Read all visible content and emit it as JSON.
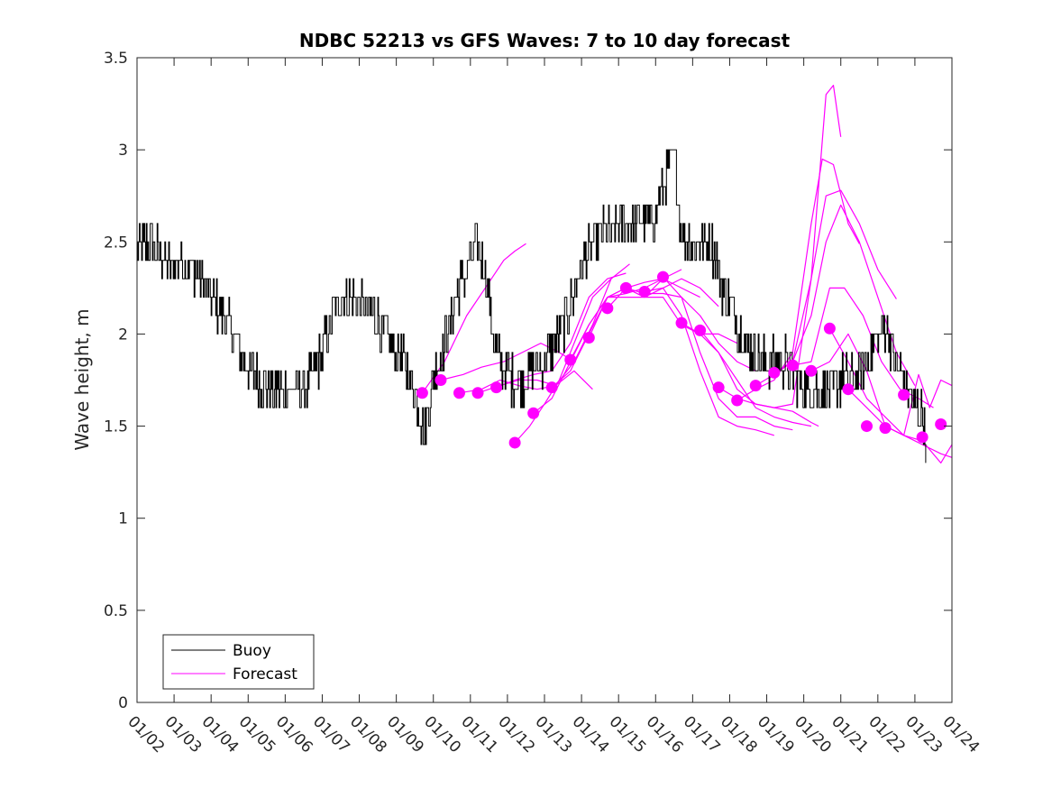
{
  "chart_data": {
    "type": "line",
    "title": "NDBC 52213 vs GFS Waves: 7 to 10 day forecast",
    "xlabel": "",
    "ylabel": "Wave height, m",
    "xlim": [
      0,
      22
    ],
    "ylim": [
      0,
      3.5
    ],
    "x_tick_values": [
      0,
      1,
      2,
      3,
      4,
      5,
      6,
      7,
      8,
      9,
      10,
      11,
      12,
      13,
      14,
      15,
      16,
      17,
      18,
      19,
      20,
      21,
      22
    ],
    "x_tick_labels": [
      "01/02",
      "01/03",
      "01/04",
      "01/05",
      "01/06",
      "01/07",
      "01/08",
      "01/09",
      "01/10",
      "01/11",
      "01/12",
      "01/13",
      "01/14",
      "01/15",
      "01/16",
      "01/17",
      "01/18",
      "01/19",
      "01/20",
      "01/21",
      "01/22",
      "01/23",
      "01/24"
    ],
    "y_tick_values": [
      0,
      0.5,
      1,
      1.5,
      2,
      2.5,
      3,
      3.5
    ],
    "y_tick_labels": [
      "0",
      "0.5",
      "1",
      "1.5",
      "2",
      "2.5",
      "3",
      "3.5"
    ],
    "legend": {
      "location": "bottom-left",
      "entries": [
        {
          "label": "Buoy",
          "color": "#000000"
        },
        {
          "label": "Forecast",
          "color": "#ff00ff"
        }
      ]
    },
    "colors": {
      "buoy": "#000000",
      "forecast": "#ff00ff"
    },
    "buoy_anchors": [
      [
        0.0,
        2.45
      ],
      [
        0.3,
        2.5
      ],
      [
        0.6,
        2.45
      ],
      [
        0.9,
        2.35
      ],
      [
        1.2,
        2.4
      ],
      [
        1.5,
        2.35
      ],
      [
        1.8,
        2.3
      ],
      [
        2.0,
        2.2
      ],
      [
        2.3,
        2.1
      ],
      [
        2.6,
        2.0
      ],
      [
        2.8,
        1.9
      ],
      [
        3.0,
        1.8
      ],
      [
        3.3,
        1.75
      ],
      [
        3.6,
        1.7
      ],
      [
        3.9,
        1.7
      ],
      [
        4.2,
        1.7
      ],
      [
        4.5,
        1.7
      ],
      [
        4.8,
        1.8
      ],
      [
        5.0,
        1.9
      ],
      [
        5.2,
        2.05
      ],
      [
        5.5,
        2.2
      ],
      [
        5.8,
        2.2
      ],
      [
        6.1,
        2.15
      ],
      [
        6.4,
        2.1
      ],
      [
        6.7,
        2.0
      ],
      [
        7.0,
        1.9
      ],
      [
        7.3,
        1.8
      ],
      [
        7.6,
        1.6
      ],
      [
        7.75,
        1.45
      ],
      [
        8.0,
        1.75
      ],
      [
        8.3,
        1.95
      ],
      [
        8.6,
        2.2
      ],
      [
        8.9,
        2.35
      ],
      [
        9.2,
        2.5
      ],
      [
        9.4,
        2.35
      ],
      [
        9.6,
        2.0
      ],
      [
        9.8,
        1.85
      ],
      [
        10.1,
        1.75
      ],
      [
        10.4,
        1.75
      ],
      [
        10.7,
        1.8
      ],
      [
        11.0,
        1.85
      ],
      [
        11.3,
        1.95
      ],
      [
        11.6,
        2.1
      ],
      [
        11.9,
        2.3
      ],
      [
        12.2,
        2.45
      ],
      [
        12.5,
        2.55
      ],
      [
        12.8,
        2.55
      ],
      [
        13.2,
        2.6
      ],
      [
        13.6,
        2.6
      ],
      [
        14.0,
        2.65
      ],
      [
        14.2,
        2.8
      ],
      [
        14.4,
        2.95
      ],
      [
        14.5,
        2.95
      ],
      [
        14.7,
        2.55
      ],
      [
        15.0,
        2.5
      ],
      [
        15.3,
        2.5
      ],
      [
        15.6,
        2.45
      ],
      [
        15.8,
        2.25
      ],
      [
        16.0,
        2.15
      ],
      [
        16.3,
        2.0
      ],
      [
        16.6,
        1.9
      ],
      [
        16.9,
        1.85
      ],
      [
        17.2,
        1.85
      ],
      [
        17.5,
        1.85
      ],
      [
        17.8,
        1.75
      ],
      [
        18.1,
        1.7
      ],
      [
        18.4,
        1.7
      ],
      [
        18.7,
        1.7
      ],
      [
        19.0,
        1.75
      ],
      [
        19.3,
        1.75
      ],
      [
        19.6,
        1.8
      ],
      [
        19.9,
        1.95
      ],
      [
        20.2,
        2.05
      ],
      [
        20.5,
        1.85
      ],
      [
        20.8,
        1.7
      ],
      [
        21.0,
        1.6
      ],
      [
        21.2,
        1.55
      ],
      [
        21.3,
        1.45
      ]
    ],
    "forecast_runs": [
      [
        [
          7.7,
          1.68
        ],
        [
          8.3,
          1.85
        ],
        [
          8.9,
          2.1
        ],
        [
          9.4,
          2.25
        ],
        [
          9.9,
          2.4
        ],
        [
          10.2,
          2.45
        ],
        [
          10.5,
          2.49
        ]
      ],
      [
        [
          8.2,
          1.75
        ],
        [
          8.8,
          1.78
        ],
        [
          9.3,
          1.82
        ],
        [
          9.9,
          1.85
        ],
        [
          10.4,
          1.9
        ],
        [
          10.9,
          1.95
        ],
        [
          11.4,
          1.9
        ],
        [
          11.8,
          1.85
        ]
      ],
      [
        [
          8.7,
          1.68
        ],
        [
          9.3,
          1.7
        ],
        [
          9.8,
          1.75
        ],
        [
          10.3,
          1.72
        ],
        [
          10.8,
          1.7
        ],
        [
          11.3,
          1.72
        ],
        [
          11.8,
          1.8
        ],
        [
          12.3,
          1.7
        ]
      ],
      [
        [
          9.2,
          1.68
        ],
        [
          9.8,
          1.72
        ],
        [
          10.3,
          1.75
        ],
        [
          10.8,
          1.75
        ],
        [
          11.3,
          1.72
        ],
        [
          11.8,
          1.85
        ],
        [
          12.3,
          2.05
        ],
        [
          12.8,
          2.3
        ]
      ],
      [
        [
          9.7,
          1.71
        ],
        [
          10.2,
          1.75
        ],
        [
          10.7,
          1.78
        ],
        [
          11.2,
          1.8
        ],
        [
          11.7,
          1.95
        ],
        [
          12.2,
          2.2
        ],
        [
          12.7,
          2.3
        ],
        [
          13.2,
          2.33
        ]
      ],
      [
        [
          10.2,
          1.41
        ],
        [
          10.6,
          1.5
        ],
        [
          11.0,
          1.62
        ],
        [
          11.4,
          1.75
        ],
        [
          11.8,
          1.95
        ],
        [
          12.3,
          2.2
        ],
        [
          12.8,
          2.3
        ],
        [
          13.3,
          2.38
        ]
      ],
      [
        [
          10.7,
          1.57
        ],
        [
          11.2,
          1.65
        ],
        [
          11.7,
          1.85
        ],
        [
          12.2,
          2.05
        ],
        [
          12.7,
          2.2
        ],
        [
          13.2,
          2.25
        ],
        [
          13.7,
          2.28
        ],
        [
          14.2,
          2.3
        ]
      ],
      [
        [
          11.2,
          1.71
        ],
        [
          11.7,
          1.8
        ],
        [
          12.2,
          2.0
        ],
        [
          12.7,
          2.2
        ],
        [
          13.2,
          2.22
        ],
        [
          13.7,
          2.25
        ],
        [
          14.2,
          2.3
        ],
        [
          14.7,
          2.35
        ]
      ],
      [
        [
          11.7,
          1.86
        ],
        [
          12.2,
          2.05
        ],
        [
          12.7,
          2.2
        ],
        [
          13.2,
          2.2
        ],
        [
          13.7,
          2.2
        ],
        [
          14.2,
          2.3
        ],
        [
          14.7,
          2.25
        ],
        [
          15.2,
          2.2
        ]
      ],
      [
        [
          12.2,
          1.98
        ],
        [
          12.7,
          2.2
        ],
        [
          13.2,
          2.25
        ],
        [
          13.7,
          2.2
        ],
        [
          14.2,
          2.25
        ],
        [
          14.7,
          2.3
        ],
        [
          15.2,
          2.25
        ],
        [
          15.7,
          2.15
        ]
      ],
      [
        [
          12.7,
          2.14
        ],
        [
          13.2,
          2.25
        ],
        [
          13.7,
          2.2
        ],
        [
          14.2,
          2.2
        ],
        [
          14.7,
          2.05
        ],
        [
          15.2,
          2.0
        ],
        [
          15.7,
          2.0
        ],
        [
          16.2,
          1.95
        ]
      ],
      [
        [
          13.2,
          2.25
        ],
        [
          13.7,
          2.22
        ],
        [
          14.2,
          2.22
        ],
        [
          14.7,
          2.2
        ],
        [
          15.2,
          2.1
        ],
        [
          15.7,
          1.95
        ],
        [
          16.2,
          1.85
        ],
        [
          16.7,
          1.8
        ]
      ],
      [
        [
          13.7,
          2.23
        ],
        [
          14.2,
          2.25
        ],
        [
          14.7,
          2.1
        ],
        [
          15.2,
          1.8
        ],
        [
          15.7,
          1.55
        ],
        [
          16.2,
          1.5
        ],
        [
          16.7,
          1.48
        ],
        [
          17.2,
          1.45
        ]
      ],
      [
        [
          14.2,
          2.31
        ],
        [
          14.7,
          2.2
        ],
        [
          15.2,
          1.9
        ],
        [
          15.7,
          1.65
        ],
        [
          16.2,
          1.55
        ],
        [
          16.7,
          1.55
        ],
        [
          17.2,
          1.5
        ],
        [
          17.7,
          1.48
        ]
      ],
      [
        [
          14.7,
          2.06
        ],
        [
          15.2,
          2.0
        ],
        [
          15.7,
          1.9
        ],
        [
          16.2,
          1.75
        ],
        [
          16.7,
          1.6
        ],
        [
          17.2,
          1.55
        ],
        [
          17.7,
          1.52
        ],
        [
          18.2,
          1.5
        ]
      ],
      [
        [
          15.2,
          2.02
        ],
        [
          15.7,
          1.9
        ],
        [
          16.2,
          1.7
        ],
        [
          16.7,
          1.62
        ],
        [
          17.2,
          1.6
        ],
        [
          17.7,
          1.58
        ],
        [
          18.2,
          1.52
        ],
        [
          18.4,
          1.5
        ]
      ],
      [
        [
          15.7,
          1.71
        ],
        [
          16.2,
          1.65
        ],
        [
          16.7,
          1.62
        ],
        [
          17.2,
          1.6
        ],
        [
          17.7,
          1.62
        ],
        [
          18.2,
          2.3
        ],
        [
          18.6,
          3.3
        ],
        [
          18.8,
          3.35
        ],
        [
          19.0,
          3.07
        ]
      ],
      [
        [
          16.2,
          1.64
        ],
        [
          16.7,
          1.7
        ],
        [
          17.2,
          1.75
        ],
        [
          17.7,
          1.9
        ],
        [
          18.2,
          2.6
        ],
        [
          18.5,
          2.95
        ],
        [
          18.8,
          2.92
        ],
        [
          19.2,
          2.6
        ],
        [
          19.5,
          2.49
        ]
      ],
      [
        [
          16.7,
          1.72
        ],
        [
          17.2,
          1.78
        ],
        [
          17.7,
          1.85
        ],
        [
          18.2,
          2.3
        ],
        [
          18.6,
          2.75
        ],
        [
          19.0,
          2.78
        ],
        [
          19.5,
          2.6
        ],
        [
          20.0,
          2.35
        ],
        [
          20.5,
          2.19
        ]
      ],
      [
        [
          17.2,
          1.79
        ],
        [
          17.7,
          1.85
        ],
        [
          18.2,
          2.1
        ],
        [
          18.6,
          2.5
        ],
        [
          19.0,
          2.7
        ],
        [
          19.5,
          2.5
        ],
        [
          20.0,
          2.2
        ],
        [
          20.5,
          1.9
        ],
        [
          21.0,
          1.72
        ]
      ],
      [
        [
          17.7,
          1.83
        ],
        [
          18.2,
          1.85
        ],
        [
          18.7,
          2.25
        ],
        [
          19.1,
          2.25
        ],
        [
          19.6,
          2.1
        ],
        [
          20.1,
          1.85
        ],
        [
          20.6,
          1.7
        ],
        [
          21.1,
          1.65
        ],
        [
          21.5,
          1.6
        ]
      ],
      [
        [
          18.2,
          1.8
        ],
        [
          18.7,
          1.85
        ],
        [
          19.2,
          2.0
        ],
        [
          19.7,
          1.8
        ],
        [
          20.2,
          1.5
        ],
        [
          20.7,
          1.45
        ],
        [
          21.2,
          1.4
        ],
        [
          21.7,
          1.35
        ],
        [
          22.0,
          1.33
        ]
      ],
      [
        [
          18.7,
          2.03
        ],
        [
          19.2,
          1.85
        ],
        [
          19.7,
          1.65
        ],
        [
          20.2,
          1.55
        ],
        [
          20.7,
          1.45
        ],
        [
          21.2,
          1.42
        ],
        [
          21.7,
          1.3
        ],
        [
          22.0,
          1.4
        ]
      ],
      [
        [
          19.2,
          1.7
        ],
        [
          19.7,
          1.6
        ],
        [
          20.2,
          1.5
        ],
        [
          20.7,
          1.45
        ],
        [
          21.1,
          1.78
        ],
        [
          21.4,
          1.6
        ],
        [
          21.7,
          1.75
        ],
        [
          22.0,
          1.72
        ]
      ]
    ],
    "forecast_markers": [
      [
        7.7,
        1.68
      ],
      [
        8.2,
        1.75
      ],
      [
        8.7,
        1.68
      ],
      [
        9.2,
        1.68
      ],
      [
        9.7,
        1.71
      ],
      [
        10.2,
        1.41
      ],
      [
        10.7,
        1.57
      ],
      [
        11.2,
        1.71
      ],
      [
        11.7,
        1.86
      ],
      [
        12.2,
        1.98
      ],
      [
        12.7,
        2.14
      ],
      [
        13.2,
        2.25
      ],
      [
        13.7,
        2.23
      ],
      [
        14.2,
        2.31
      ],
      [
        14.7,
        2.06
      ],
      [
        15.2,
        2.02
      ],
      [
        15.7,
        1.71
      ],
      [
        16.2,
        1.64
      ],
      [
        16.7,
        1.72
      ],
      [
        17.2,
        1.79
      ],
      [
        17.7,
        1.83
      ],
      [
        18.2,
        1.8
      ],
      [
        18.7,
        2.03
      ],
      [
        19.2,
        1.7
      ],
      [
        19.7,
        1.5
      ],
      [
        20.2,
        1.49
      ],
      [
        20.7,
        1.67
      ],
      [
        21.2,
        1.44
      ],
      [
        21.7,
        1.51
      ]
    ]
  }
}
